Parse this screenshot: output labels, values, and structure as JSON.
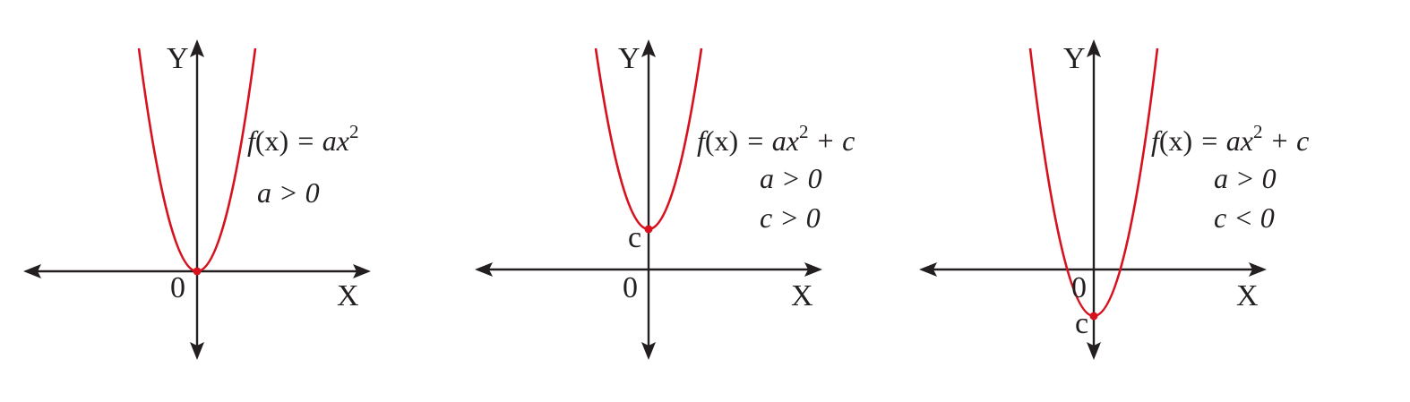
{
  "colors": {
    "axis": "#231f20",
    "curve": "#d7121f",
    "background": "#ffffff"
  },
  "panels": [
    {
      "axes": {
        "x_label": "X",
        "y_label": "Y",
        "origin_label": "0"
      },
      "formula": {
        "f": "f",
        "arg": "(x)",
        "rhs": " = ax",
        "exponent": "2",
        "tail": ""
      },
      "conditions": [
        "a > 0"
      ],
      "vertex_label": "",
      "vertex_value": 0
    },
    {
      "axes": {
        "x_label": "X",
        "y_label": "Y",
        "origin_label": "0"
      },
      "formula": {
        "f": "f",
        "arg": "(x)",
        "rhs": " = ax",
        "exponent": "2",
        "tail": " + c"
      },
      "conditions": [
        "a > 0",
        "c > 0"
      ],
      "vertex_label": "c",
      "vertex_value": 1
    },
    {
      "axes": {
        "x_label": "X",
        "y_label": "Y",
        "origin_label": "0"
      },
      "formula": {
        "f": "f",
        "arg": "(x)",
        "rhs": " = ax",
        "exponent": "2",
        "tail": " + c"
      },
      "conditions": [
        "a > 0",
        "c < 0"
      ],
      "vertex_label": "c",
      "vertex_value": -1
    }
  ]
}
